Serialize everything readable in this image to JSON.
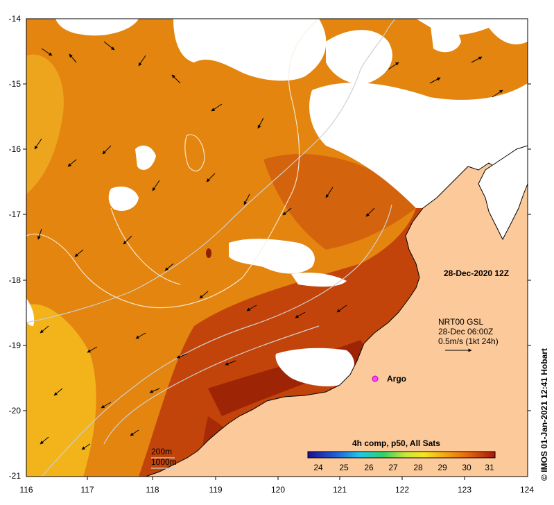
{
  "map": {
    "date_label": "28-Dec-2020 12Z",
    "current_info": [
      "NRT00 GSL",
      "28-Dec 06:00Z",
      "0.5m/s (1kt 24h)"
    ],
    "argo_label": "Argo",
    "depth_contours": [
      "200m",
      "1000m"
    ],
    "credit": "© IMOS 01-Jan-2021 12:41 Hobart",
    "x_ticks": [
      "116",
      "117",
      "118",
      "119",
      "120",
      "121",
      "122",
      "123",
      "124"
    ],
    "y_ticks": [
      "-14",
      "-15",
      "-16",
      "-17",
      "-18",
      "-19",
      "-20",
      "-21"
    ]
  },
  "colorbar": {
    "title": "4h comp, p50, All Sats",
    "ticks": [
      "24",
      "25",
      "26",
      "27",
      "28",
      "29",
      "30",
      "31"
    ]
  },
  "colors": {
    "land": "#fbc99a",
    "sst_main": "#e3850f",
    "sst_warm": "#c2440a",
    "sst_hot": "#9e2406",
    "sst_cool": "#f2b41a",
    "cloud": "#ffffff",
    "coast": "#000000",
    "bathymetry": "#cfcfcf"
  }
}
